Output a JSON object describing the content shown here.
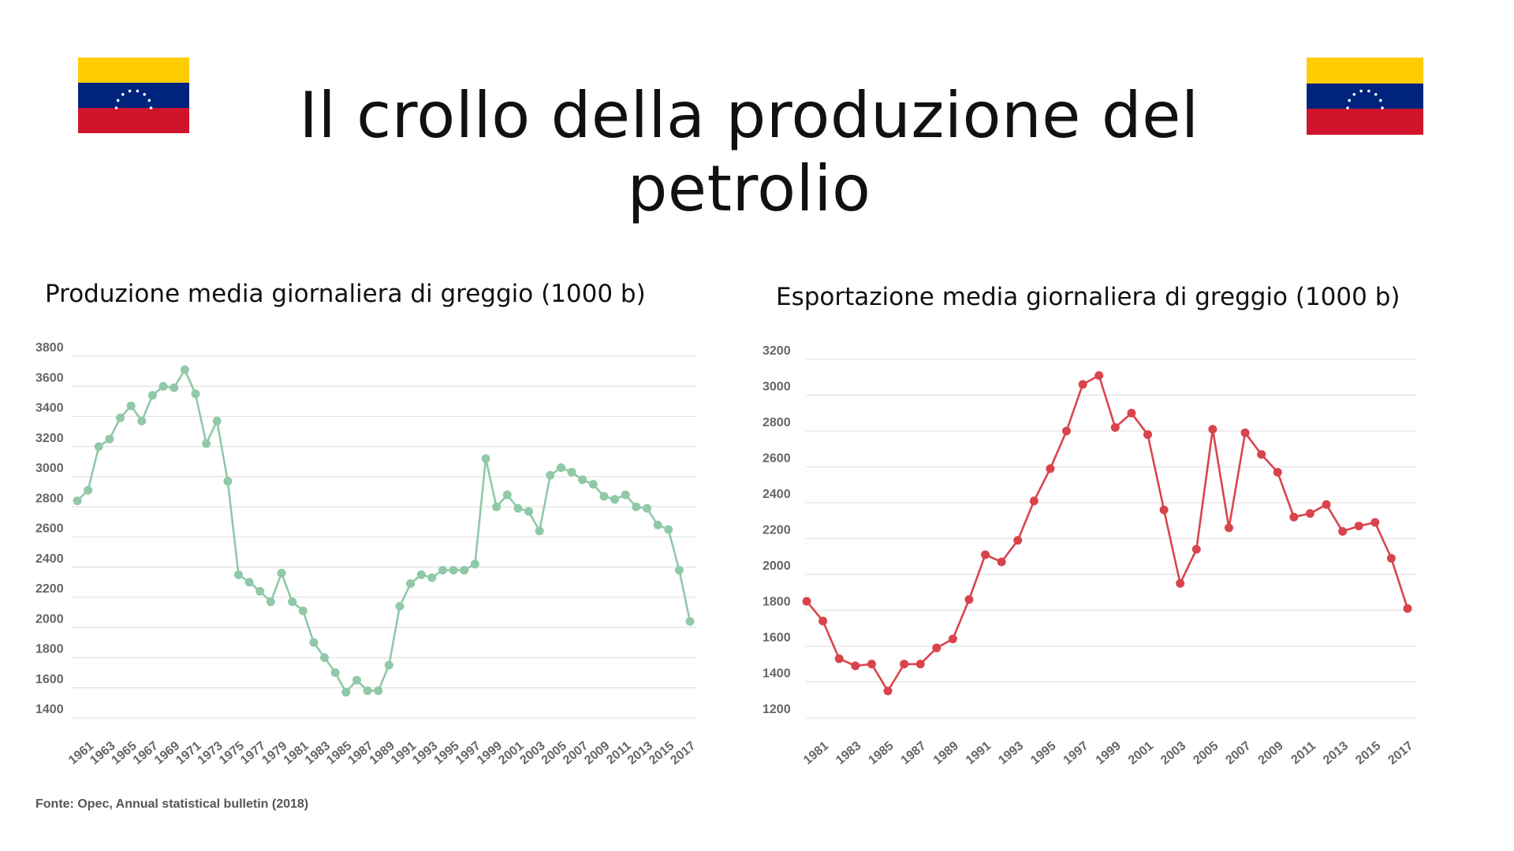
{
  "slide": {
    "title": "Il crollo della produzione del petrolio",
    "source": "Fonte: Opec, Annual statistical bulletin (2018)"
  },
  "flag": {
    "name": "venezuela-flag",
    "colors": {
      "yellow": "#FFCC00",
      "blue": "#00247D",
      "red": "#CF142B",
      "stars": "#FFFFFF"
    }
  },
  "chart_data": [
    {
      "type": "line",
      "caption": "Produzione media giornaliera di greggio (1000 b)",
      "color": "#8FC9A8",
      "grid": true,
      "ylim": [
        1400,
        3800
      ],
      "yticks": [
        3800,
        3600,
        3400,
        3200,
        3000,
        2800,
        2600,
        2400,
        2200,
        2000,
        1800,
        1600,
        1400
      ],
      "xtick_labels": [
        "1961",
        "1963",
        "1965",
        "1967",
        "1969",
        "1971",
        "1973",
        "1975",
        "1977",
        "1979",
        "1981",
        "1983",
        "1985",
        "1987",
        "1989",
        "1991",
        "1993",
        "1995",
        "1997",
        "1999",
        "2001",
        "2003",
        "2005",
        "2007",
        "2009",
        "2011",
        "2013",
        "2015",
        "2017"
      ],
      "x": [
        1960,
        1961,
        1962,
        1963,
        1964,
        1965,
        1966,
        1967,
        1968,
        1969,
        1970,
        1971,
        1972,
        1973,
        1974,
        1975,
        1976,
        1977,
        1978,
        1979,
        1980,
        1981,
        1982,
        1983,
        1984,
        1985,
        1986,
        1987,
        1988,
        1989,
        1990,
        1991,
        1992,
        1993,
        1994,
        1995,
        1996,
        1997,
        1998,
        1999,
        2000,
        2001,
        2002,
        2003,
        2004,
        2005,
        2006,
        2007,
        2008,
        2009,
        2010,
        2011,
        2012,
        2013,
        2014,
        2015,
        2016,
        2017
      ],
      "values": [
        2840,
        2910,
        3200,
        3250,
        3390,
        3470,
        3370,
        3540,
        3600,
        3590,
        3710,
        3550,
        3220,
        3370,
        2970,
        2350,
        2300,
        2240,
        2170,
        2360,
        2170,
        2110,
        1900,
        1800,
        1700,
        1570,
        1650,
        1580,
        1580,
        1750,
        2140,
        2290,
        2350,
        2330,
        2380,
        2380,
        2380,
        2420,
        3120,
        2800,
        2880,
        2790,
        2770,
        2640,
        3010,
        3060,
        3030,
        2980,
        2950,
        2870,
        2850,
        2880,
        2800,
        2790,
        2680,
        2650,
        2380,
        2040
      ]
    },
    {
      "type": "line",
      "caption": "Esportazione media giornaliera di greggio (1000 b)",
      "color": "#D9444C",
      "grid": true,
      "ylim": [
        1200,
        3200
      ],
      "yticks": [
        3200,
        3000,
        2800,
        2600,
        2400,
        2200,
        2000,
        1800,
        1600,
        1400,
        1200
      ],
      "xtick_labels": [
        "1981",
        "1983",
        "1985",
        "1987",
        "1989",
        "1991",
        "1993",
        "1995",
        "1997",
        "1999",
        "2001",
        "2003",
        "2005",
        "2007",
        "2009",
        "2011",
        "2013",
        "2015",
        "2017"
      ],
      "x": [
        1980,
        1981,
        1982,
        1983,
        1984,
        1985,
        1986,
        1987,
        1988,
        1989,
        1990,
        1991,
        1992,
        1993,
        1994,
        1995,
        1996,
        1997,
        1998,
        1999,
        2000,
        2001,
        2002,
        2003,
        2004,
        2005,
        2006,
        2007,
        2008,
        2009,
        2010,
        2011,
        2012,
        2013,
        2014,
        2015,
        2016,
        2017
      ],
      "values": [
        1850,
        1740,
        1530,
        1490,
        1500,
        1350,
        1500,
        1500,
        1590,
        1640,
        1860,
        2110,
        2070,
        2190,
        2410,
        2590,
        2800,
        3060,
        3110,
        2820,
        2900,
        2780,
        2360,
        1950,
        2140,
        2810,
        2260,
        2790,
        2670,
        2570,
        2320,
        2340,
        2390,
        2240,
        2270,
        2290,
        2090,
        1810
      ]
    }
  ]
}
